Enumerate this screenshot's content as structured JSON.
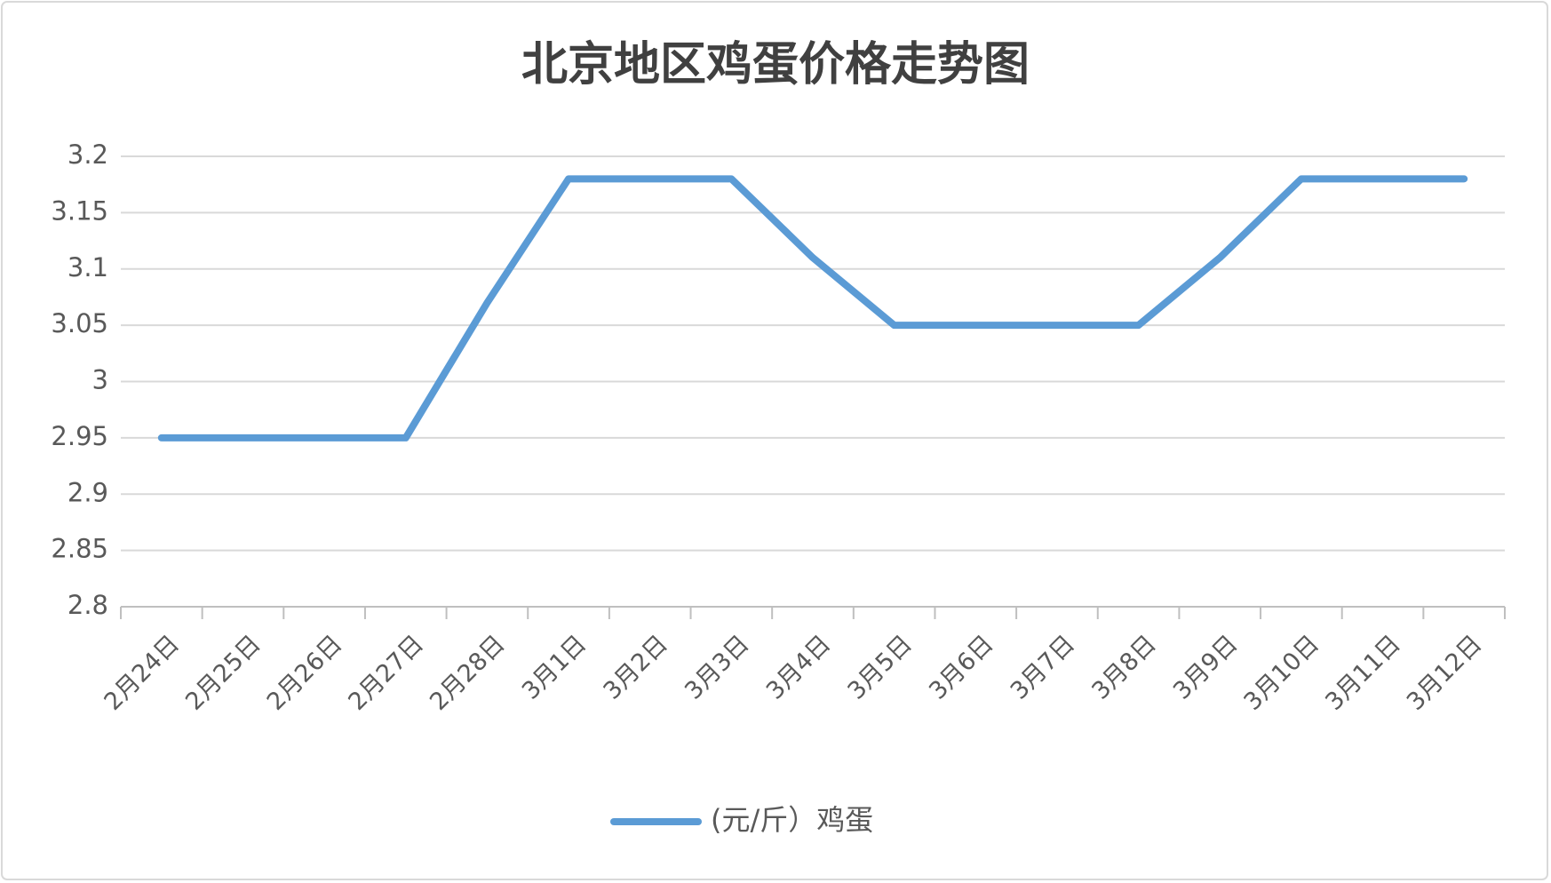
{
  "chart_data": {
    "type": "line",
    "title": "北京地区鸡蛋价格走势图",
    "categories": [
      "2月24日",
      "2月25日",
      "2月26日",
      "2月27日",
      "2月28日",
      "3月1日",
      "3月2日",
      "3月3日",
      "3月4日",
      "3月5日",
      "3月6日",
      "3月7日",
      "3月8日",
      "3月9日",
      "3月10日",
      "3月11日",
      "3月12日"
    ],
    "series": [
      {
        "name": "(元/斤）鸡蛋",
        "color": "#5b9bd5",
        "values": [
          2.95,
          2.95,
          2.95,
          2.95,
          3.07,
          3.18,
          3.18,
          3.18,
          3.11,
          3.05,
          3.05,
          3.05,
          3.05,
          3.11,
          3.18,
          3.18,
          3.18
        ]
      }
    ],
    "ylim": [
      2.8,
      3.2
    ],
    "yticks": [
      2.8,
      2.85,
      2.9,
      2.95,
      3,
      3.05,
      3.1,
      3.15,
      3.2
    ],
    "grid": true,
    "legend": "bottom"
  }
}
